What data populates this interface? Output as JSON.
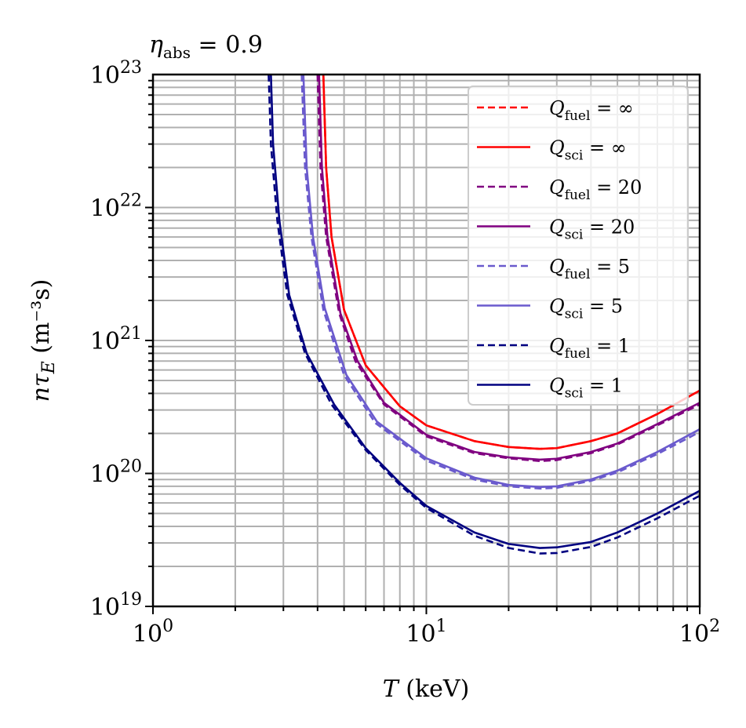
{
  "chart_data": {
    "type": "line",
    "title": "η_abs = 0.9",
    "xlabel": "T (keV)",
    "ylabel": "nτ_E (m⁻³s)",
    "xscale": "log",
    "yscale": "log",
    "xlim": [
      1,
      100
    ],
    "ylim": [
      1e+19,
      1e+23
    ],
    "x_ticks": [
      {
        "value": 1,
        "label_base": "10",
        "label_exp": "0"
      },
      {
        "value": 10,
        "label_base": "10",
        "label_exp": "1"
      },
      {
        "value": 100,
        "label_base": "10",
        "label_exp": "2"
      }
    ],
    "y_ticks": [
      {
        "value": 1e+19,
        "label_base": "10",
        "label_exp": "19"
      },
      {
        "value": 1e+20,
        "label_base": "10",
        "label_exp": "20"
      },
      {
        "value": 1e+21,
        "label_base": "10",
        "label_exp": "21"
      },
      {
        "value": 1e+22,
        "label_base": "10",
        "label_exp": "22"
      },
      {
        "value": 1e+23,
        "label_base": "10",
        "label_exp": "23"
      }
    ],
    "grid": "major-and-minor",
    "legend_position": "top-right",
    "series": [
      {
        "name": "Q_fuel = ∞",
        "sub": "fuel",
        "value": "∞",
        "color": "#ff0000",
        "dashed": true,
        "points": [
          [
            4.2,
            1e+23
          ],
          [
            4.3,
            2e+22
          ],
          [
            4.5,
            6e+21
          ],
          [
            5,
            1.7e+21
          ],
          [
            6,
            6.5e+20
          ],
          [
            8,
            3.2e+20
          ],
          [
            10,
            2.3e+20
          ],
          [
            15,
            1.75e+20
          ],
          [
            20,
            1.58e+20
          ],
          [
            26,
            1.53e+20
          ],
          [
            30,
            1.55e+20
          ],
          [
            40,
            1.75e+20
          ],
          [
            50,
            2e+20
          ],
          [
            70,
            2.8e+20
          ],
          [
            100,
            4.2e+20
          ]
        ]
      },
      {
        "name": "Q_sci = ∞",
        "sub": "sci",
        "value": "∞",
        "color": "#ff0000",
        "dashed": false,
        "points": [
          [
            4.2,
            1e+23
          ],
          [
            4.3,
            2e+22
          ],
          [
            4.5,
            6e+21
          ],
          [
            5,
            1.7e+21
          ],
          [
            6,
            6.5e+20
          ],
          [
            8,
            3.2e+20
          ],
          [
            10,
            2.3e+20
          ],
          [
            15,
            1.75e+20
          ],
          [
            20,
            1.58e+20
          ],
          [
            26,
            1.53e+20
          ],
          [
            30,
            1.55e+20
          ],
          [
            40,
            1.75e+20
          ],
          [
            50,
            2e+20
          ],
          [
            70,
            2.8e+20
          ],
          [
            100,
            4.2e+20
          ]
        ]
      },
      {
        "name": "Q_fuel = 20",
        "sub": "fuel",
        "value": "20",
        "color": "#800080",
        "dashed": true,
        "points": [
          [
            4.0,
            1e+23
          ],
          [
            4.1,
            2e+22
          ],
          [
            4.3,
            6e+21
          ],
          [
            4.8,
            1.6e+21
          ],
          [
            5.5,
            7e+20
          ],
          [
            7,
            3.3e+20
          ],
          [
            10,
            1.9e+20
          ],
          [
            15,
            1.42e+20
          ],
          [
            20,
            1.3e+20
          ],
          [
            26,
            1.24e+20
          ],
          [
            30,
            1.26e+20
          ],
          [
            40,
            1.42e+20
          ],
          [
            50,
            1.65e+20
          ],
          [
            70,
            2.3e+20
          ],
          [
            100,
            3.3e+20
          ]
        ]
      },
      {
        "name": "Q_sci = 20",
        "sub": "sci",
        "value": "20",
        "color": "#800080",
        "dashed": false,
        "points": [
          [
            4.05,
            1e+23
          ],
          [
            4.15,
            2e+22
          ],
          [
            4.35,
            6e+21
          ],
          [
            4.85,
            1.6e+21
          ],
          [
            5.6,
            7e+20
          ],
          [
            7,
            3.4e+20
          ],
          [
            10,
            1.95e+20
          ],
          [
            15,
            1.45e+20
          ],
          [
            20,
            1.32e+20
          ],
          [
            26,
            1.27e+20
          ],
          [
            30,
            1.29e+20
          ],
          [
            40,
            1.45e+20
          ],
          [
            50,
            1.68e+20
          ],
          [
            70,
            2.35e+20
          ],
          [
            100,
            3.4e+20
          ]
        ]
      },
      {
        "name": "Q_fuel = 5",
        "sub": "fuel",
        "value": "5",
        "color": "#6a5acd",
        "dashed": true,
        "points": [
          [
            3.5,
            1e+23
          ],
          [
            3.6,
            2e+22
          ],
          [
            3.8,
            6e+21
          ],
          [
            4.2,
            1.7e+21
          ],
          [
            5,
            5.5e+20
          ],
          [
            6.5,
            2.4e+20
          ],
          [
            10,
            1.25e+20
          ],
          [
            15,
            9e+19
          ],
          [
            20,
            8e+19
          ],
          [
            26,
            7.7e+19
          ],
          [
            30,
            7.8e+19
          ],
          [
            40,
            8.8e+19
          ],
          [
            50,
            1.02e+20
          ],
          [
            70,
            1.4e+20
          ],
          [
            100,
            2.05e+20
          ]
        ]
      },
      {
        "name": "Q_sci = 5",
        "sub": "sci",
        "value": "5",
        "color": "#6a5acd",
        "dashed": false,
        "points": [
          [
            3.55,
            1e+23
          ],
          [
            3.65,
            2e+22
          ],
          [
            3.85,
            6e+21
          ],
          [
            4.25,
            1.75e+21
          ],
          [
            5.1,
            5.5e+20
          ],
          [
            6.6,
            2.45e+20
          ],
          [
            10,
            1.3e+20
          ],
          [
            15,
            9.3e+19
          ],
          [
            20,
            8.2e+19
          ],
          [
            26,
            7.9e+19
          ],
          [
            30,
            8e+19
          ],
          [
            40,
            9e+19
          ],
          [
            50,
            1.05e+20
          ],
          [
            70,
            1.45e+20
          ],
          [
            100,
            2.15e+20
          ]
        ]
      },
      {
        "name": "Q_fuel = 1",
        "sub": "fuel",
        "value": "1",
        "color": "#000080",
        "dashed": true,
        "points": [
          [
            2.65,
            1e+23
          ],
          [
            2.7,
            3e+22
          ],
          [
            2.85,
            8e+21
          ],
          [
            3.1,
            2.2e+21
          ],
          [
            3.6,
            8e+20
          ],
          [
            4.5,
            3.3e+20
          ],
          [
            6,
            1.5e+20
          ],
          [
            8,
            8.2e+19
          ],
          [
            10,
            5.5e+19
          ],
          [
            15,
            3.4e+19
          ],
          [
            20,
            2.75e+19
          ],
          [
            26,
            2.5e+19
          ],
          [
            30,
            2.52e+19
          ],
          [
            40,
            2.8e+19
          ],
          [
            50,
            3.3e+19
          ],
          [
            70,
            4.6e+19
          ],
          [
            100,
            6.8e+19
          ]
        ]
      },
      {
        "name": "Q_sci = 1",
        "sub": "sci",
        "value": "1",
        "color": "#000080",
        "dashed": false,
        "points": [
          [
            2.7,
            1e+23
          ],
          [
            2.75,
            3e+22
          ],
          [
            2.9,
            8e+21
          ],
          [
            3.15,
            2.2e+21
          ],
          [
            3.65,
            8e+20
          ],
          [
            4.6,
            3.3e+20
          ],
          [
            6,
            1.55e+20
          ],
          [
            8,
            8.5e+19
          ],
          [
            10,
            5.7e+19
          ],
          [
            15,
            3.6e+19
          ],
          [
            20,
            2.95e+19
          ],
          [
            26,
            2.75e+19
          ],
          [
            30,
            2.78e+19
          ],
          [
            40,
            3.05e+19
          ],
          [
            50,
            3.6e+19
          ],
          [
            70,
            5e+19
          ],
          [
            100,
            7.4e+19
          ]
        ]
      }
    ]
  }
}
